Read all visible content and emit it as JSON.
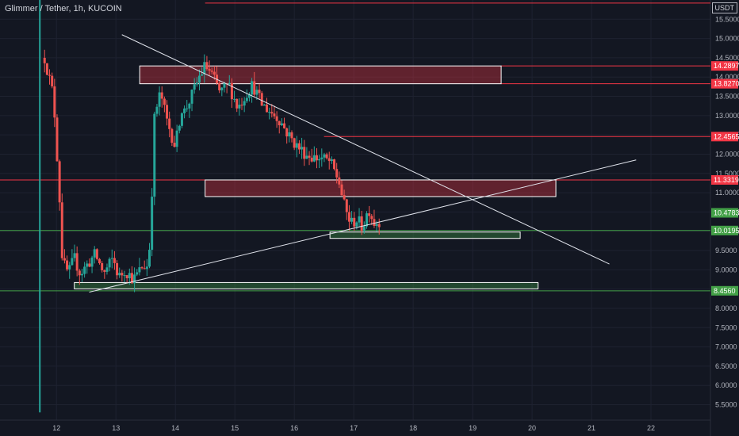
{
  "header": {
    "symbol": "Glimmer / Tether, 1h, KUCOIN",
    "currency": "USDT"
  },
  "colors": {
    "background": "#131722",
    "grid": "#1e2230",
    "text": "#b2b5be",
    "up": "#26a69a",
    "down": "#ef5350",
    "red_line": "#f23645",
    "green_line": "#43a047",
    "red_zone_fill": "rgba(242,54,69,0.35)",
    "green_zone_fill": "rgba(67,160,71,0.35)",
    "trendline": "#e0e3eb",
    "red_label_bg": "#f23645",
    "green_label_bg": "#43a047"
  },
  "chart_data": {
    "type": "candlestick",
    "x_ticks": [
      "12",
      "13",
      "14",
      "15",
      "16",
      "17",
      "18",
      "19",
      "20",
      "21",
      "22"
    ],
    "y_ticks": [
      "5.5000",
      "6.0000",
      "6.5000",
      "7.0000",
      "7.5000",
      "8.0000",
      "8.5000",
      "9.0000",
      "9.5000",
      "10.0000",
      "10.5000",
      "11.0000",
      "11.5000",
      "12.0000",
      "12.5000",
      "13.0000",
      "13.5000",
      "14.0000",
      "14.5000",
      "15.0000",
      "15.5000"
    ],
    "ylim": [
      5.1,
      16.0
    ],
    "xlim": [
      11.05,
      23.0
    ],
    "price_labels": [
      {
        "text": "14.2897",
        "value": 14.2897,
        "kind": "red"
      },
      {
        "text": "13.8270",
        "value": 13.827,
        "kind": "red"
      },
      {
        "text": "12.4565",
        "value": 12.4565,
        "kind": "red"
      },
      {
        "text": "11.3319",
        "value": 11.3319,
        "kind": "red"
      },
      {
        "text": "10.4783",
        "value": 10.4783,
        "kind": "green"
      },
      {
        "text": "10.0195",
        "value": 10.0195,
        "kind": "green"
      },
      {
        "text": "8.4560",
        "value": 8.456,
        "kind": "green"
      }
    ],
    "horizontal_lines": [
      {
        "y": 15.92,
        "x_start": 14.5,
        "kind": "red"
      },
      {
        "y": 14.2897,
        "x_start": 19.48,
        "kind": "red"
      },
      {
        "y": 13.827,
        "x_start": 19.48,
        "kind": "red"
      },
      {
        "y": 12.4565,
        "x_start": 16.5,
        "kind": "red"
      },
      {
        "y": 11.3319,
        "x_start": 11.05,
        "kind": "red"
      },
      {
        "y": 10.0195,
        "x_start": 11.05,
        "kind": "green"
      },
      {
        "y": 8.456,
        "x_start": 11.05,
        "kind": "green"
      }
    ],
    "zones": [
      {
        "x1": 13.4,
        "x2": 19.48,
        "y_top": 14.2897,
        "y_bottom": 13.827,
        "kind": "red"
      },
      {
        "x1": 14.5,
        "x2": 20.4,
        "y_top": 11.3319,
        "y_bottom": 10.9,
        "kind": "red"
      },
      {
        "x1": 16.6,
        "x2": 19.8,
        "y_top": 9.98,
        "y_bottom": 9.85,
        "kind": "green"
      },
      {
        "x1": 12.3,
        "x2": 20.1,
        "y_top": 8.67,
        "y_bottom": 8.56,
        "kind": "green"
      }
    ],
    "trendlines": [
      {
        "x1": 13.1,
        "y1": 15.1,
        "x2": 21.3,
        "y2": 9.15
      },
      {
        "x1": 12.55,
        "y1": 8.42,
        "x2": 21.75,
        "y2": 11.85
      }
    ],
    "price_path": [
      [
        11.8,
        14.5
      ],
      [
        11.95,
        13.5
      ],
      [
        12.05,
        10.9
      ],
      [
        12.1,
        9.2
      ],
      [
        12.2,
        8.9
      ],
      [
        12.3,
        9.3
      ],
      [
        12.4,
        8.9
      ],
      [
        12.55,
        9.2
      ],
      [
        12.65,
        9.4
      ],
      [
        12.8,
        8.9
      ],
      [
        12.95,
        9.3
      ],
      [
        13.05,
        8.8
      ],
      [
        13.15,
        9.0
      ],
      [
        13.3,
        8.75
      ],
      [
        13.45,
        9.1
      ],
      [
        13.55,
        9.1
      ],
      [
        13.6,
        10.8
      ],
      [
        13.65,
        13.0
      ],
      [
        13.75,
        13.6
      ],
      [
        13.85,
        12.9
      ],
      [
        14.0,
        12.2
      ],
      [
        14.1,
        13.2
      ],
      [
        14.15,
        13.1
      ],
      [
        14.3,
        13.6
      ],
      [
        14.4,
        14.0
      ],
      [
        14.5,
        14.3
      ],
      [
        14.6,
        14.1
      ],
      [
        14.75,
        13.6
      ],
      [
        14.9,
        13.8
      ],
      [
        15.05,
        13.2
      ],
      [
        15.2,
        13.6
      ],
      [
        15.3,
        13.8
      ],
      [
        15.45,
        13.3
      ],
      [
        15.6,
        13.1
      ],
      [
        15.75,
        12.9
      ],
      [
        15.9,
        12.5
      ],
      [
        16.05,
        12.2
      ],
      [
        16.2,
        12.0
      ],
      [
        16.35,
        11.9
      ],
      [
        16.45,
        11.9
      ],
      [
        16.6,
        11.8
      ],
      [
        16.75,
        11.3
      ],
      [
        16.85,
        10.6
      ],
      [
        16.95,
        10.2
      ],
      [
        17.05,
        10.3
      ],
      [
        17.15,
        10.1
      ],
      [
        17.25,
        10.6
      ],
      [
        17.35,
        10.2
      ],
      [
        17.45,
        10.3
      ]
    ]
  }
}
